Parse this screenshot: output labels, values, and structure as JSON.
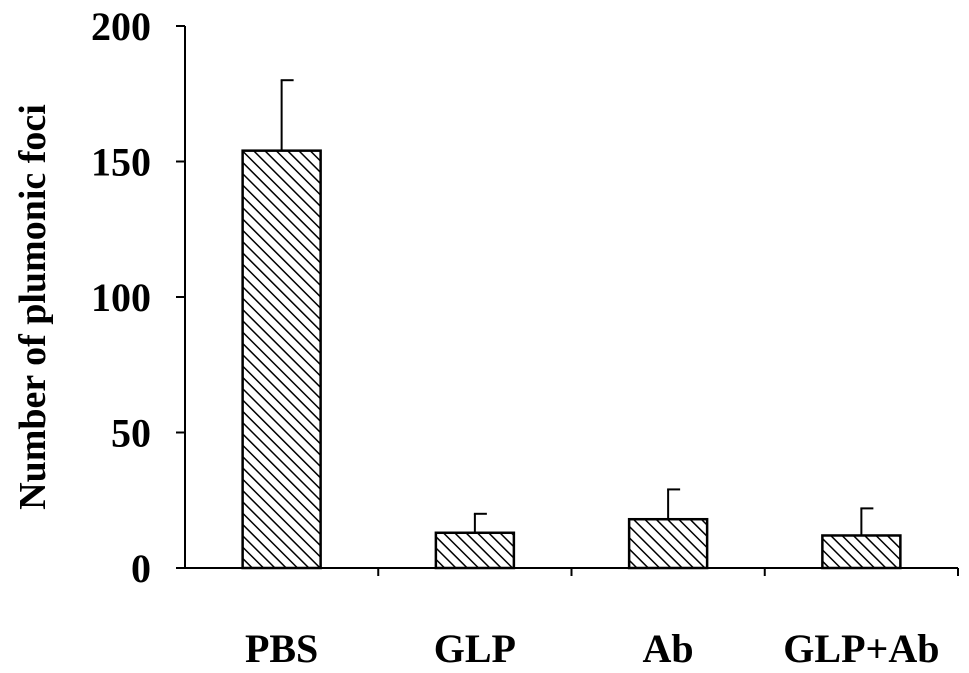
{
  "chart_data": {
    "type": "bar",
    "title": "",
    "xlabel": "",
    "ylabel": "Number of plumonic foci",
    "categories": [
      "PBS",
      "GLP",
      "Ab",
      "GLP+Ab"
    ],
    "values": [
      154,
      13,
      18,
      12
    ],
    "error_upper": [
      26,
      7,
      11,
      10
    ],
    "ylim": [
      0,
      200
    ],
    "yticks": [
      0,
      50,
      100,
      150,
      200
    ],
    "ytick_labels": [
      "0",
      "50",
      "100",
      "150",
      "200"
    ],
    "grid": false,
    "legend": "none",
    "bar_fill": "diagonal-hatch",
    "colors": {
      "bar_outline": "#000000",
      "hatch": "#000000",
      "background": "#ffffff"
    }
  }
}
